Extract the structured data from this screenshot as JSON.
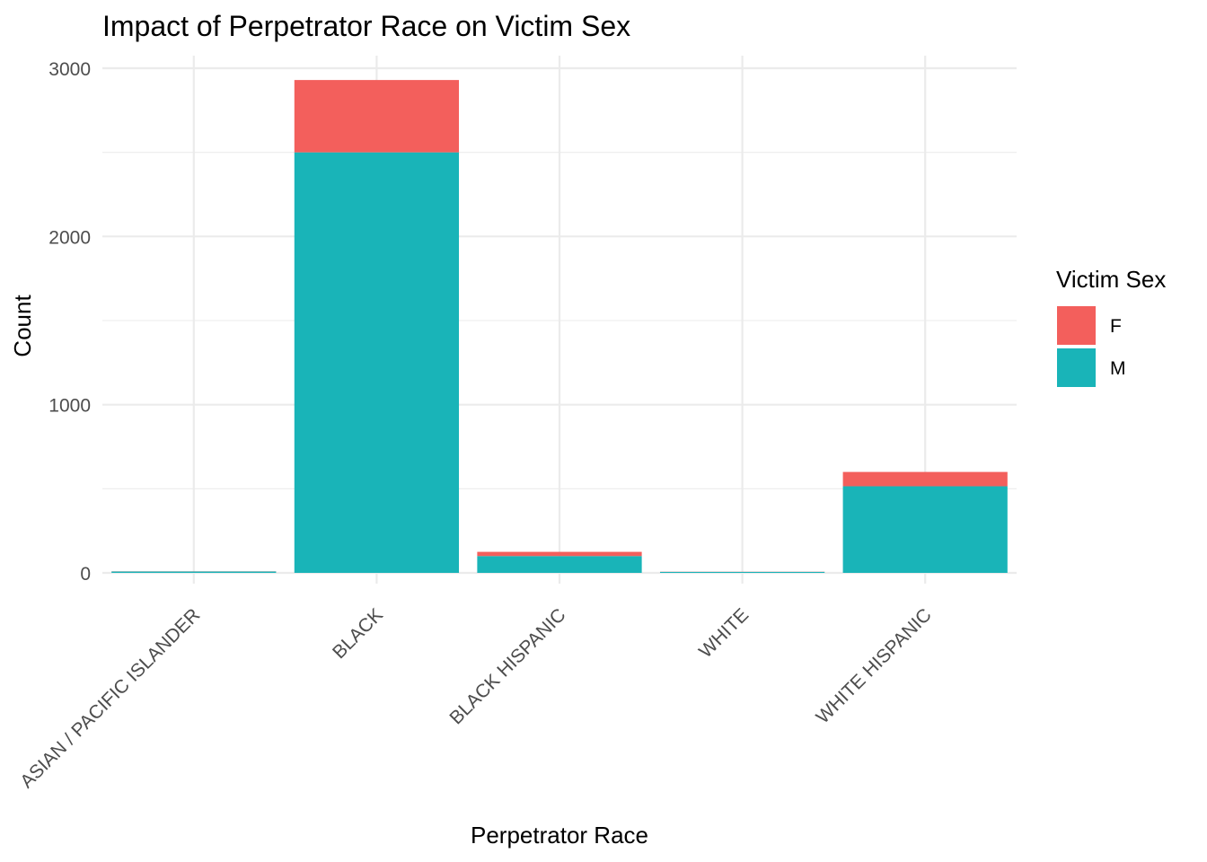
{
  "chart_data": {
    "type": "bar",
    "stacked": true,
    "title": "Impact of Perpetrator Race on Victim Sex",
    "xlabel": "Perpetrator Race",
    "ylabel": "Count",
    "categories": [
      "ASIAN / PACIFIC ISLANDER",
      "BLACK",
      "BLACK HISPANIC",
      "WHITE",
      "WHITE HISPANIC"
    ],
    "series": [
      {
        "name": "M",
        "color": "#19b4b8",
        "values": [
          8,
          2500,
          100,
          6,
          515
        ]
      },
      {
        "name": "F",
        "color": "#f35f5c",
        "values": [
          1,
          430,
          25,
          1,
          85
        ]
      }
    ],
    "ylim": [
      0,
      3060
    ],
    "yticks": [
      0,
      1000,
      2000,
      3000
    ],
    "ytick_labels": [
      "0",
      "1000",
      "2000",
      "3000"
    ],
    "grid": true,
    "legend": {
      "title": "Victim Sex",
      "position": "right",
      "entries": [
        {
          "label": "F",
          "color": "#f35f5c"
        },
        {
          "label": "M",
          "color": "#19b4b8"
        }
      ]
    }
  }
}
